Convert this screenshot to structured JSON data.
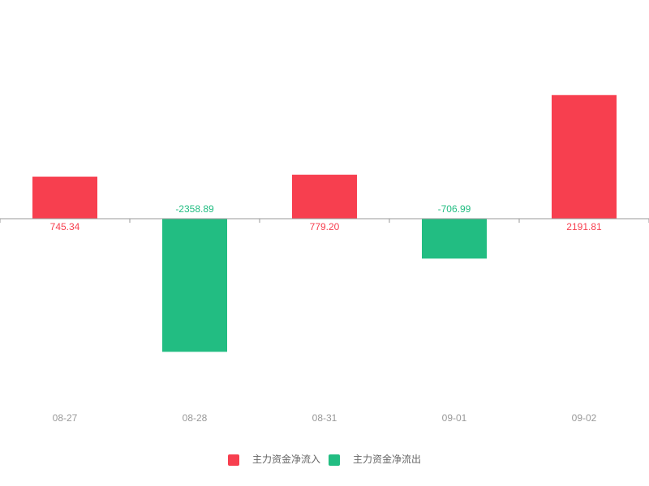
{
  "chart_data": {
    "type": "bar",
    "categories": [
      "08-27",
      "08-28",
      "08-31",
      "09-01",
      "09-02"
    ],
    "series": [
      {
        "name": "主力资金净流入",
        "color": "#f73f4f",
        "values": [
          745.34,
          null,
          779.2,
          null,
          2191.81
        ],
        "value_labels": [
          "745.34",
          null,
          "779.20",
          null,
          "2191.81"
        ]
      },
      {
        "name": "主力资金净流出",
        "color": "#22bd82",
        "values": [
          null,
          -2358.89,
          null,
          -706.99,
          null
        ],
        "value_labels": [
          null,
          "-2358.89",
          null,
          "-706.99",
          null
        ]
      }
    ],
    "ylim": [
      -3000,
      3000
    ]
  }
}
